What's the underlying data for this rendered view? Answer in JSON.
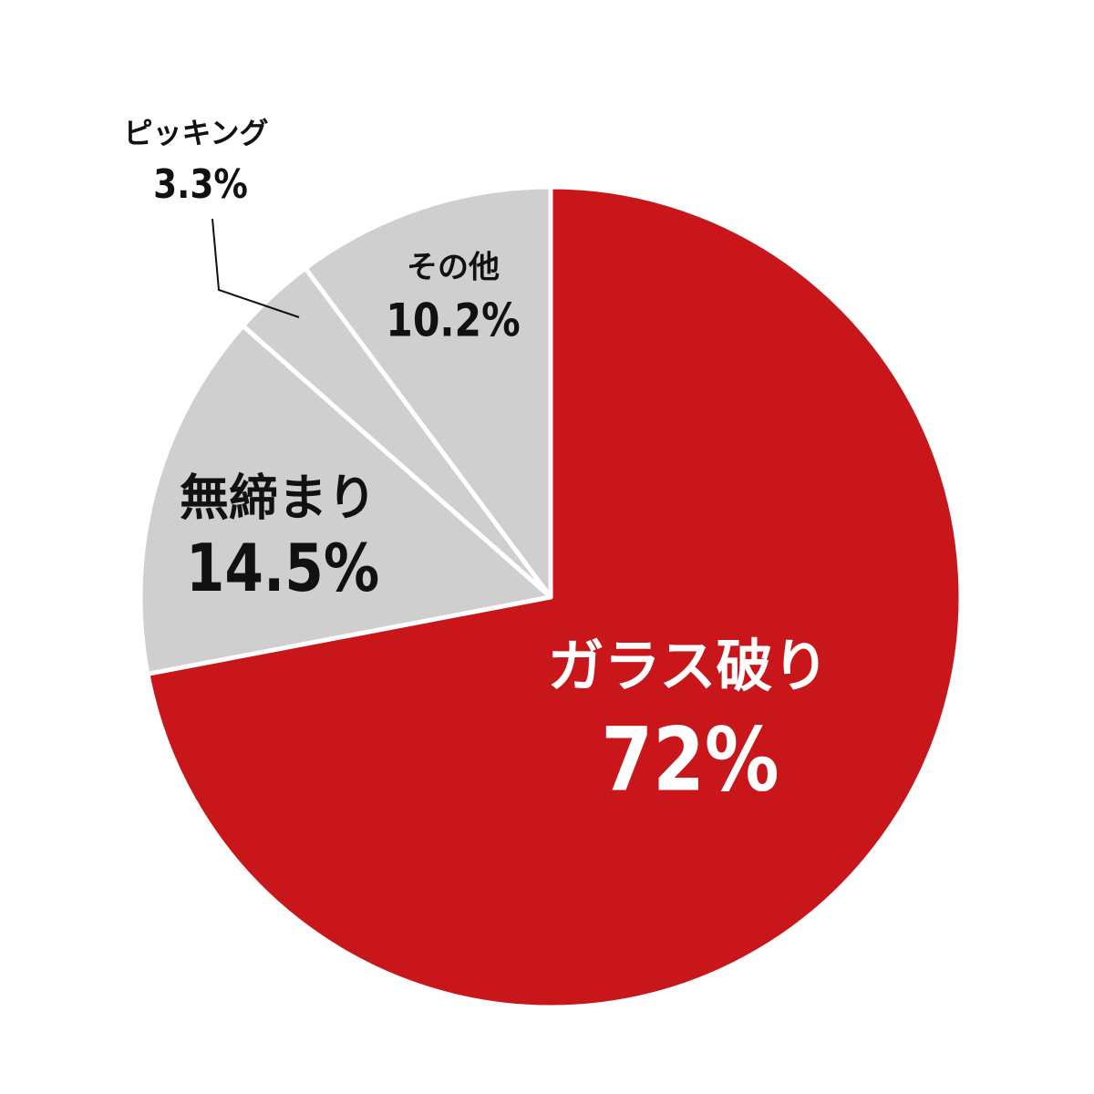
{
  "chart_data": {
    "type": "pie",
    "categories": [
      "ガラス破り",
      "無締まり",
      "ピッキング",
      "その他"
    ],
    "values": [
      72,
      14.5,
      3.3,
      10.2
    ],
    "value_labels": [
      "72%",
      "14.5%",
      "3.3%",
      "10.2%"
    ],
    "colors": [
      "#c8161a",
      "#cfcfcf",
      "#cfcfcf",
      "#cfcfcf"
    ]
  }
}
